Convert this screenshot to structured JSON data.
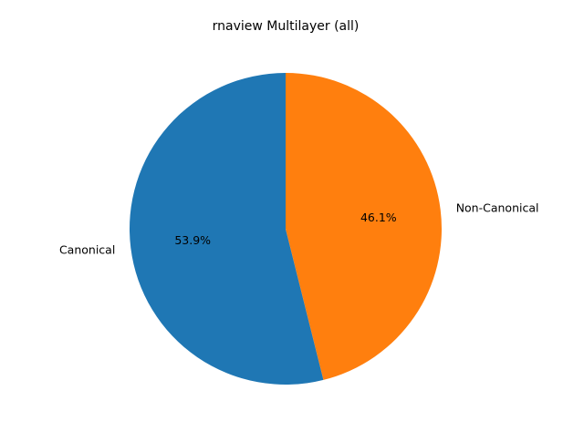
{
  "chart_data": {
    "type": "pie",
    "title": "rnaview Multilayer (all)",
    "slices": [
      {
        "label": "Canonical",
        "value": 53.9,
        "pct_label": "53.9%",
        "color": "#1f77b4"
      },
      {
        "label": "Non-Canonical",
        "value": 46.1,
        "pct_label": "46.1%",
        "color": "#ff7f0e"
      }
    ],
    "start_angle_deg": 90,
    "direction": "counterclockwise"
  }
}
